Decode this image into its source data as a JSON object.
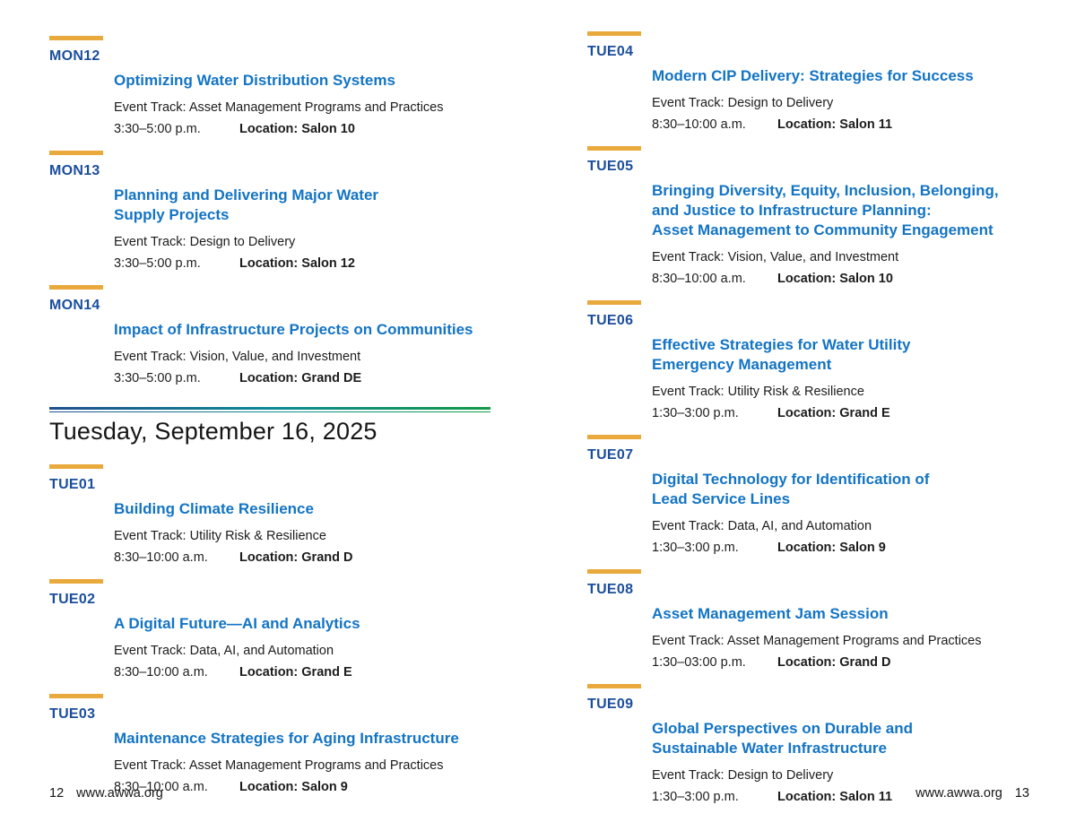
{
  "day_header": {
    "title": "Tuesday, September 16, 2025"
  },
  "left_column": {
    "monday_sessions": [
      {
        "code": "MON12",
        "title": "Optimizing Water Distribution Systems",
        "track": "Event Track: Asset Management Programs and Practices",
        "time": "3:30–5:00 p.m.",
        "location": "Location: Salon 10"
      },
      {
        "code": "MON13",
        "title": "Planning and Delivering Major Water\nSupply Projects",
        "track": "Event Track: Design to Delivery",
        "time": "3:30–5:00 p.m.",
        "location": "Location: Salon 12"
      },
      {
        "code": "MON14",
        "title": "Impact of Infrastructure Projects on Communities",
        "track": "Event Track: Vision, Value, and Investment",
        "time": "3:30–5:00 p.m.",
        "location": "Location: Grand DE"
      }
    ],
    "tuesday_sessions": [
      {
        "code": "TUE01",
        "title": "Building Climate Resilience",
        "track": "Event Track: Utility Risk & Resilience",
        "time": "8:30–10:00 a.m.",
        "location": "Location: Grand D"
      },
      {
        "code": "TUE02",
        "title": "A Digital Future—AI and Analytics",
        "track": "Event Track: Data, AI, and Automation",
        "time": "8:30–10:00 a.m.",
        "location": "Location: Grand E"
      },
      {
        "code": "TUE03",
        "title": "Maintenance Strategies for Aging Infrastructure",
        "track": "Event Track: Asset Management Programs and Practices",
        "time": "8:30–10:00 a.m.",
        "location": "Location: Salon 9"
      }
    ]
  },
  "right_column": {
    "sessions": [
      {
        "code": "TUE04",
        "title": "Modern CIP Delivery: Strategies for Success",
        "track": "Event Track: Design to Delivery",
        "time": "8:30–10:00 a.m.",
        "location": "Location: Salon 11"
      },
      {
        "code": "TUE05",
        "title": "Bringing Diversity, Equity, Inclusion, Belonging,\nand Justice to Infrastructure Planning:\nAsset Management to Community Engagement",
        "track": "Event Track: Vision, Value, and Investment",
        "time": "8:30–10:00 a.m.",
        "location": "Location: Salon 10"
      },
      {
        "code": "TUE06",
        "title": "Effective Strategies for Water Utility\nEmergency Management",
        "track": "Event Track: Utility Risk & Resilience",
        "time": "1:30–3:00 p.m.",
        "location": "Location: Grand E"
      },
      {
        "code": "TUE07",
        "title": "Digital Technology for Identification of\nLead Service Lines",
        "track": "Event Track: Data, AI, and Automation",
        "time": "1:30–3:00 p.m.",
        "location": "Location: Salon 9"
      },
      {
        "code": "TUE08",
        "title": "Asset Management Jam Session",
        "track": "Event Track: Asset Management Programs and Practices",
        "time": "1:30–03:00 p.m.",
        "location": "Location: Grand D"
      },
      {
        "code": "TUE09",
        "title": "Global Perspectives on Durable and\nSustainable Water Infrastructure",
        "track": "Event Track: Design to Delivery",
        "time": "1:30–3:00 p.m.",
        "location": "Location: Salon 11"
      }
    ]
  },
  "footer_left": {
    "page_number": "12",
    "site": "www.awwa.org"
  },
  "footer_right": {
    "site": "www.awwa.org",
    "page_number": "13"
  },
  "colors": {
    "accent_bar": "#E9A93C",
    "code_blue": "#1B4E9C",
    "title_blue": "#1374C4",
    "divider_gradient_start": "#20508F",
    "divider_gradient_mid": "#0D8A94",
    "divider_gradient_end": "#149A47"
  }
}
